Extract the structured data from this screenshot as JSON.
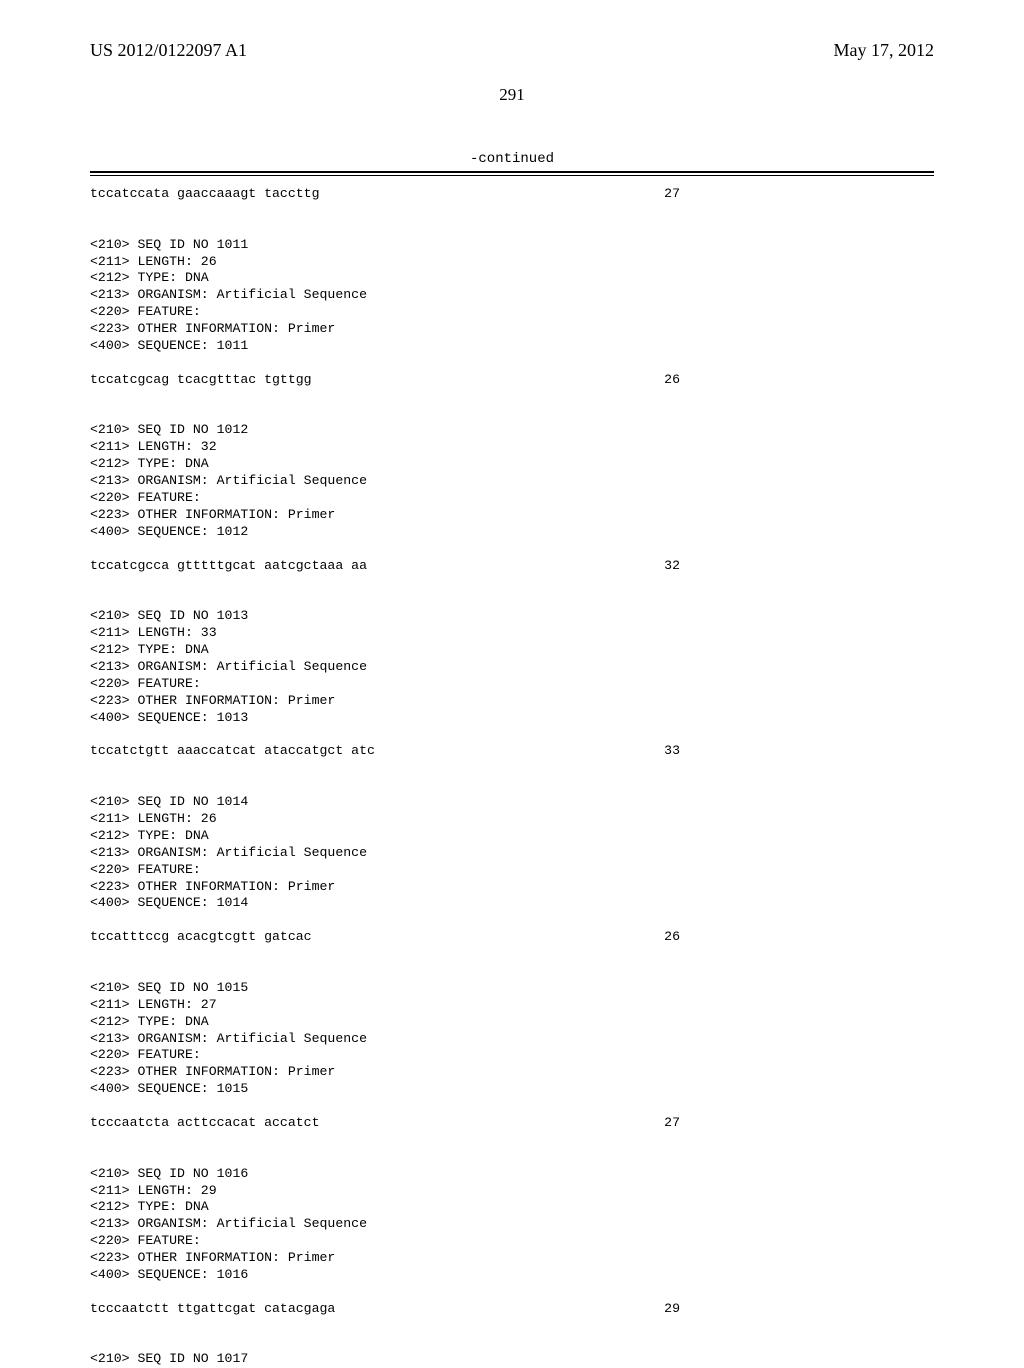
{
  "header": {
    "left": "US 2012/0122097 A1",
    "right": "May 17, 2012"
  },
  "page_number": "291",
  "continued_label": "-continued",
  "entries": [
    {
      "sequence_text": "tccatccata gaaccaaagt taccttg",
      "sequence_len": "27",
      "next_block": [
        "<210> SEQ ID NO 1011",
        "<211> LENGTH: 26",
        "<212> TYPE: DNA",
        "<213> ORGANISM: Artificial Sequence",
        "<220> FEATURE:",
        "<223> OTHER INFORMATION: Primer",
        "",
        "<400> SEQUENCE: 1011"
      ]
    },
    {
      "sequence_text": "tccatcgcag tcacgtttac tgttgg",
      "sequence_len": "26",
      "next_block": [
        "<210> SEQ ID NO 1012",
        "<211> LENGTH: 32",
        "<212> TYPE: DNA",
        "<213> ORGANISM: Artificial Sequence",
        "<220> FEATURE:",
        "<223> OTHER INFORMATION: Primer",
        "",
        "<400> SEQUENCE: 1012"
      ]
    },
    {
      "sequence_text": "tccatcgcca gtttttgcat aatcgctaaa aa",
      "sequence_len": "32",
      "next_block": [
        "<210> SEQ ID NO 1013",
        "<211> LENGTH: 33",
        "<212> TYPE: DNA",
        "<213> ORGANISM: Artificial Sequence",
        "<220> FEATURE:",
        "<223> OTHER INFORMATION: Primer",
        "",
        "<400> SEQUENCE: 1013"
      ]
    },
    {
      "sequence_text": "tccatctgtt aaaccatcat ataccatgct atc",
      "sequence_len": "33",
      "next_block": [
        "<210> SEQ ID NO 1014",
        "<211> LENGTH: 26",
        "<212> TYPE: DNA",
        "<213> ORGANISM: Artificial Sequence",
        "<220> FEATURE:",
        "<223> OTHER INFORMATION: Primer",
        "",
        "<400> SEQUENCE: 1014"
      ]
    },
    {
      "sequence_text": "tccatttccg acacgtcgtt gatcac",
      "sequence_len": "26",
      "next_block": [
        "<210> SEQ ID NO 1015",
        "<211> LENGTH: 27",
        "<212> TYPE: DNA",
        "<213> ORGANISM: Artificial Sequence",
        "<220> FEATURE:",
        "<223> OTHER INFORMATION: Primer",
        "",
        "<400> SEQUENCE: 1015"
      ]
    },
    {
      "sequence_text": "tcccaatcta acttccacat accatct",
      "sequence_len": "27",
      "next_block": [
        "<210> SEQ ID NO 1016",
        "<211> LENGTH: 29",
        "<212> TYPE: DNA",
        "<213> ORGANISM: Artificial Sequence",
        "<220> FEATURE:",
        "<223> OTHER INFORMATION: Primer",
        "",
        "<400> SEQUENCE: 1016"
      ]
    },
    {
      "sequence_text": "tcccaatctt ttgattcgat catacgaga",
      "sequence_len": "29",
      "next_block": [
        "<210> SEQ ID NO 1017"
      ]
    }
  ]
}
